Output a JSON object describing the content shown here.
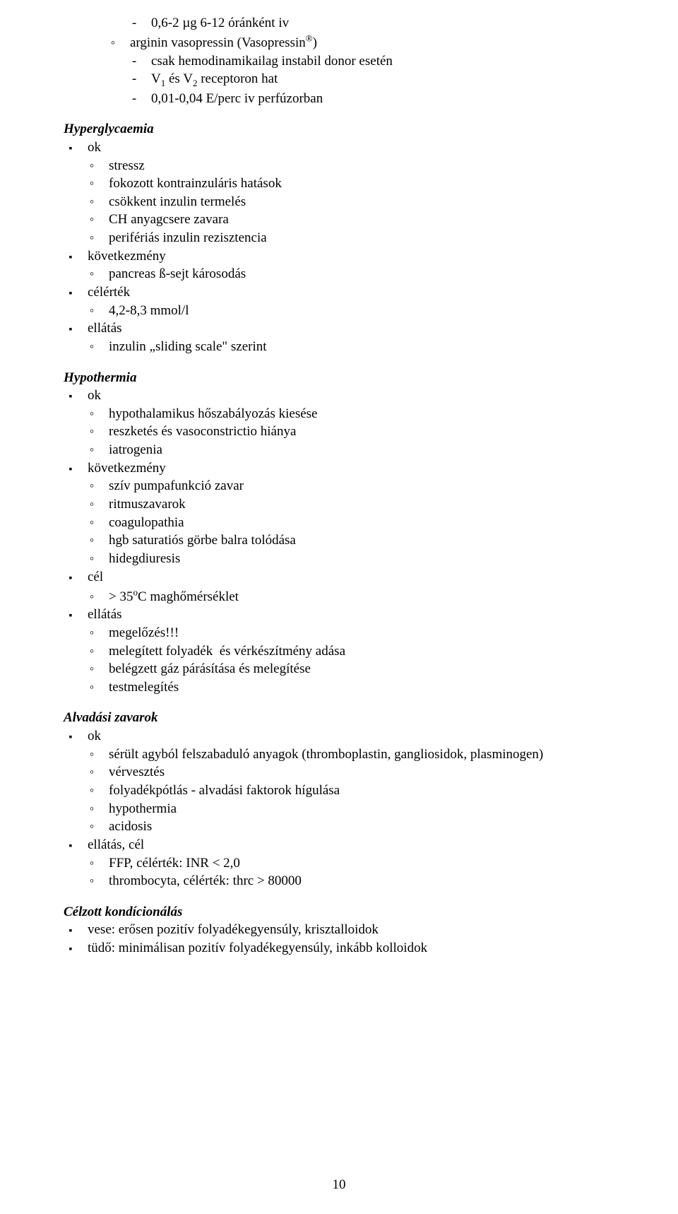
{
  "page_number": "10",
  "sections": [
    {
      "heading": null,
      "items": [
        {
          "level": 3,
          "bullet": "dash",
          "html": "0,6-2 µg 6-12 óránként iv"
        },
        {
          "level": 2,
          "bullet": "ring",
          "html": "arginin vasopressin (Vasopressin<sup>®</sup>)"
        },
        {
          "level": 3,
          "bullet": "dash",
          "html": "csak hemodinamikailag instabil donor esetén"
        },
        {
          "level": 3,
          "bullet": "dash",
          "html": "V<sub>1</sub> és V<sub>2</sub> receptoron hat"
        },
        {
          "level": 3,
          "bullet": "dash",
          "html": "0,01-0,04 E/perc iv perfúzorban"
        }
      ]
    },
    {
      "heading": "Hyperglycaemia",
      "items": [
        {
          "level": 0,
          "bullet": "square",
          "html": "ok"
        },
        {
          "level": 1,
          "bullet": "ring",
          "html": "stressz"
        },
        {
          "level": 1,
          "bullet": "ring",
          "html": "fokozott kontrainzuláris hatások"
        },
        {
          "level": 1,
          "bullet": "ring",
          "html": "csökkent inzulin termelés"
        },
        {
          "level": 1,
          "bullet": "ring",
          "html": "CH anyagcsere zavara"
        },
        {
          "level": 1,
          "bullet": "ring",
          "html": "perifériás inzulin rezisztencia"
        },
        {
          "level": 0,
          "bullet": "square",
          "html": "következmény"
        },
        {
          "level": 1,
          "bullet": "ring",
          "html": "pancreas ß-sejt károsodás"
        },
        {
          "level": 0,
          "bullet": "square",
          "html": "célérték"
        },
        {
          "level": 1,
          "bullet": "ring",
          "html": "4,2-8,3 mmol/l"
        },
        {
          "level": 0,
          "bullet": "square",
          "html": "ellátás"
        },
        {
          "level": 1,
          "bullet": "ring",
          "html": "inzulin „sliding scale\" szerint"
        }
      ]
    },
    {
      "heading": "Hypothermia",
      "items": [
        {
          "level": 0,
          "bullet": "square",
          "html": "ok"
        },
        {
          "level": 1,
          "bullet": "ring",
          "html": "hypothalamikus hőszabályozás kiesése"
        },
        {
          "level": 1,
          "bullet": "ring",
          "html": "reszketés és vasoconstrictio hiánya"
        },
        {
          "level": 1,
          "bullet": "ring",
          "html": "iatrogenia"
        },
        {
          "level": 0,
          "bullet": "square",
          "html": "következmény"
        },
        {
          "level": 1,
          "bullet": "ring",
          "html": "szív pumpafunkció zavar"
        },
        {
          "level": 1,
          "bullet": "ring",
          "html": "ritmuszavarok"
        },
        {
          "level": 1,
          "bullet": "ring",
          "html": "coagulopathia"
        },
        {
          "level": 1,
          "bullet": "ring",
          "html": "hgb saturatiós görbe balra tolódása"
        },
        {
          "level": 1,
          "bullet": "ring",
          "html": "hidegdiuresis"
        },
        {
          "level": 0,
          "bullet": "square",
          "html": "cél"
        },
        {
          "level": 1,
          "bullet": "ring",
          "html": "&gt; 35<sup>o</sup>C maghőmérséklet"
        },
        {
          "level": 0,
          "bullet": "square",
          "html": "ellátás"
        },
        {
          "level": 1,
          "bullet": "ring",
          "html": "megelőzés!!!"
        },
        {
          "level": 1,
          "bullet": "ring",
          "html": "melegített folyadék  és vérkészítmény adása"
        },
        {
          "level": 1,
          "bullet": "ring",
          "html": "belégzett gáz párásítása és melegítése"
        },
        {
          "level": 1,
          "bullet": "ring",
          "html": "testmelegítés"
        }
      ]
    },
    {
      "heading": "Alvadási zavarok",
      "items": [
        {
          "level": 0,
          "bullet": "square",
          "html": "ok"
        },
        {
          "level": 1,
          "bullet": "ring",
          "html": "sérült agyból felszabaduló anyagok (thromboplastin, gangliosidok, plasminogen)"
        },
        {
          "level": 1,
          "bullet": "ring",
          "html": "vérvesztés"
        },
        {
          "level": 1,
          "bullet": "ring",
          "html": "folyadékpótlás - alvadási faktorok hígulása"
        },
        {
          "level": 1,
          "bullet": "ring",
          "html": "hypothermia"
        },
        {
          "level": 1,
          "bullet": "ring",
          "html": "acidosis"
        },
        {
          "level": 0,
          "bullet": "square",
          "html": "ellátás, cél"
        },
        {
          "level": 1,
          "bullet": "ring",
          "html": "FFP, célérték: INR &lt; 2,0"
        },
        {
          "level": 1,
          "bullet": "ring",
          "html": "thrombocyta, célérték: thrc &gt; 80000"
        }
      ]
    },
    {
      "heading": "Célzott kondícionálás",
      "items": [
        {
          "level": 0,
          "bullet": "square",
          "html": "vese: erősen pozitív folyadékegyensúly, krisztalloidok"
        },
        {
          "level": 0,
          "bullet": "square",
          "html": "tüdő: minimálisan pozitív folyadékegyensúly, inkább kolloidok"
        }
      ]
    }
  ]
}
